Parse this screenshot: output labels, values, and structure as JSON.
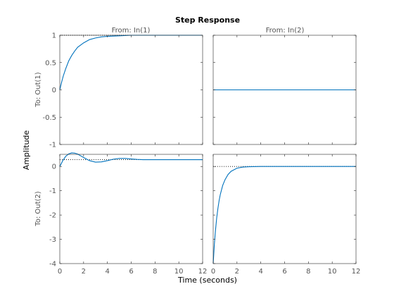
{
  "chart_data": {
    "type": "line",
    "title": "Step Response",
    "xlabel": "Time (seconds)",
    "ylabel": "Amplitude",
    "grid": false,
    "line_color": "#0072BD",
    "ref_color": "#000000",
    "xlim": [
      0,
      12
    ],
    "xticks": [
      0,
      2,
      4,
      6,
      8,
      10,
      12
    ],
    "columns": [
      "From: In(1)",
      "From: In(2)"
    ],
    "rows": [
      {
        "label": "To: Out(1)",
        "ylim": [
          -1,
          1
        ],
        "yticks": [
          -1,
          -0.5,
          0,
          0.5,
          1
        ],
        "yticklabels": [
          "-1",
          "-0.5",
          "0",
          "0.5",
          "1"
        ]
      },
      {
        "label": "To: Out(2)",
        "ylim": [
          -4,
          0.5
        ],
        "yticks": [
          -4,
          -3,
          -2,
          -1,
          0
        ],
        "yticklabels": [
          "-4",
          "-3",
          "-2",
          "-1",
          "0"
        ]
      }
    ],
    "panels": [
      {
        "id": "out1-in1",
        "row": 0,
        "col": 0,
        "final_value": 1,
        "x": [
          0,
          0.1,
          0.2,
          0.3,
          0.5,
          0.75,
          1.0,
          1.25,
          1.5,
          2.0,
          2.5,
          3.0,
          3.5,
          4.0,
          5.0,
          6.0,
          7.0,
          8.0,
          10.0,
          12.0
        ],
        "y": [
          0,
          0.095,
          0.18,
          0.26,
          0.39,
          0.53,
          0.63,
          0.71,
          0.78,
          0.86,
          0.92,
          0.95,
          0.97,
          0.98,
          0.99,
          1.0,
          1.0,
          1.0,
          1.0,
          1.0
        ]
      },
      {
        "id": "out1-in2",
        "row": 0,
        "col": 1,
        "final_value": 0,
        "x": [
          0,
          12
        ],
        "y": [
          0,
          0
        ]
      },
      {
        "id": "out2-in1",
        "row": 1,
        "col": 0,
        "final_value": 0.28,
        "x": [
          0,
          0.25,
          0.5,
          0.75,
          1.0,
          1.25,
          1.5,
          1.75,
          2.0,
          2.5,
          3.0,
          3.5,
          4.0,
          4.5,
          5.0,
          5.5,
          6.0,
          6.5,
          7.0,
          7.5,
          8.0,
          10.0,
          12.0
        ],
        "y": [
          0,
          0.24,
          0.42,
          0.52,
          0.56,
          0.55,
          0.51,
          0.44,
          0.37,
          0.24,
          0.18,
          0.19,
          0.24,
          0.3,
          0.33,
          0.33,
          0.31,
          0.29,
          0.28,
          0.28,
          0.28,
          0.28,
          0.28
        ]
      },
      {
        "id": "out2-in2",
        "row": 1,
        "col": 1,
        "final_value": 0,
        "x": [
          0,
          0.1,
          0.2,
          0.3,
          0.4,
          0.5,
          0.6,
          0.8,
          1.0,
          1.25,
          1.5,
          2.0,
          2.5,
          3.0,
          4.0,
          6.0,
          8.0,
          12.0
        ],
        "y": [
          -4,
          -3.2,
          -2.6,
          -2.1,
          -1.72,
          -1.4,
          -1.15,
          -0.78,
          -0.54,
          -0.33,
          -0.2,
          -0.07,
          -0.025,
          -0.01,
          0,
          0,
          0,
          0
        ]
      }
    ]
  }
}
